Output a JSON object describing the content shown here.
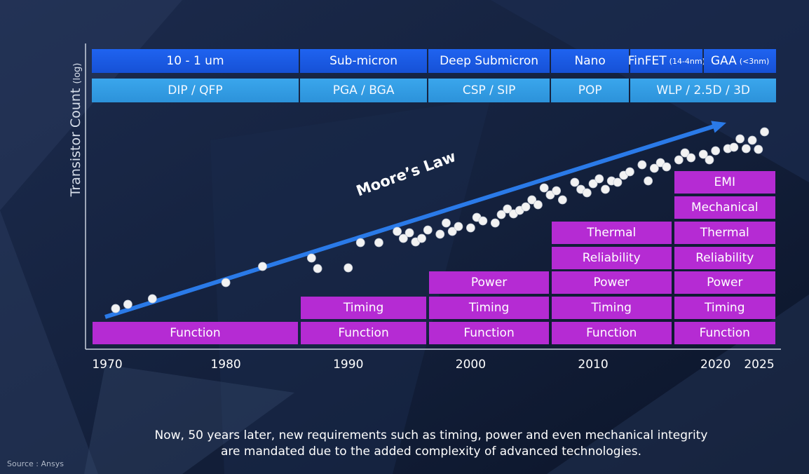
{
  "chart_data": {
    "type": "scatter",
    "ylabel": "Transistor Count",
    "ylabel_suffix": "(log)",
    "trend_label": "Moore’s Law",
    "x_ticks": [
      "1970",
      "1980",
      "1990",
      "2000",
      "2010",
      "2020",
      "2025"
    ],
    "xlim": [
      1969,
      2025
    ],
    "node_bands": [
      {
        "label": "10 - 1 um",
        "sub": "",
        "start": 1969,
        "end": 1986
      },
      {
        "label": "Sub-micron",
        "sub": "",
        "start": 1986,
        "end": 1996.5
      },
      {
        "label": "Deep Submicron",
        "sub": "",
        "start": 1996.5,
        "end": 2006.5
      },
      {
        "label": "Nano",
        "sub": "",
        "start": 2006.5,
        "end": 2013
      },
      {
        "label": "FinFET",
        "sub": "(14-4nm)",
        "start": 2013,
        "end": 2019
      },
      {
        "label": "GAA",
        "sub": "(<3nm)",
        "start": 2019,
        "end": 2025
      }
    ],
    "package_bands": [
      {
        "label": "DIP / QFP",
        "start": 1969,
        "end": 1986
      },
      {
        "label": "PGA / BGA",
        "start": 1986,
        "end": 1996.5
      },
      {
        "label": "CSP / SIP",
        "start": 1996.5,
        "end": 2006.5
      },
      {
        "label": "POP",
        "start": 2006.5,
        "end": 2013
      },
      {
        "label": "WLP / 2.5D / 3D",
        "start": 2013,
        "end": 2025
      }
    ],
    "requirement_columns": [
      {
        "start": 1969,
        "end": 1986,
        "items": [
          "Function"
        ]
      },
      {
        "start": 1986,
        "end": 1996.5,
        "items": [
          "Function",
          "Timing"
        ]
      },
      {
        "start": 1996.5,
        "end": 2006.5,
        "items": [
          "Function",
          "Timing",
          "Power"
        ]
      },
      {
        "start": 2006.5,
        "end": 2016.5,
        "items": [
          "Function",
          "Timing",
          "Power",
          "Reliability",
          "Thermal"
        ]
      },
      {
        "start": 2016.5,
        "end": 2026.5,
        "items": [
          "Function",
          "Timing",
          "Power",
          "Reliability",
          "Thermal",
          "Mechanical",
          "EMI"
        ]
      }
    ],
    "points": [
      [
        1971,
        440
      ],
      [
        1972,
        434
      ],
      [
        1974,
        426
      ],
      [
        1980,
        403
      ],
      [
        1983,
        380
      ],
      [
        1987,
        368
      ],
      [
        1987.5,
        383
      ],
      [
        1990,
        382
      ],
      [
        1991,
        346
      ],
      [
        1992.5,
        346
      ],
      [
        1994,
        330
      ],
      [
        1994.5,
        340
      ],
      [
        1995,
        332
      ],
      [
        1995.5,
        345
      ],
      [
        1996,
        340
      ],
      [
        1996.5,
        328
      ],
      [
        1997.5,
        334
      ],
      [
        1998,
        318
      ],
      [
        1998.5,
        330
      ],
      [
        1999,
        323
      ],
      [
        2000,
        325
      ],
      [
        2000.5,
        310
      ],
      [
        2001,
        315
      ],
      [
        2002,
        318
      ],
      [
        2002.5,
        306
      ],
      [
        2003,
        298
      ],
      [
        2003.5,
        305
      ],
      [
        2004,
        300
      ],
      [
        2004.5,
        295
      ],
      [
        2005,
        285
      ],
      [
        2005.5,
        292
      ],
      [
        2006,
        268
      ],
      [
        2006.5,
        278
      ],
      [
        2007,
        272
      ],
      [
        2007.5,
        285
      ],
      [
        2008.5,
        260
      ],
      [
        2009,
        270
      ],
      [
        2009.5,
        275
      ],
      [
        2010,
        262
      ],
      [
        2010.5,
        255
      ],
      [
        2011,
        270
      ],
      [
        2011.5,
        258
      ],
      [
        2012,
        260
      ],
      [
        2012.5,
        250
      ],
      [
        2013,
        245
      ],
      [
        2014,
        235
      ],
      [
        2014.5,
        258
      ],
      [
        2015,
        240
      ],
      [
        2015.5,
        232
      ],
      [
        2016,
        238
      ],
      [
        2017,
        228
      ],
      [
        2017.5,
        218
      ],
      [
        2018,
        225
      ],
      [
        2019,
        220
      ],
      [
        2019.5,
        228
      ],
      [
        2020,
        215
      ],
      [
        2021,
        212
      ],
      [
        2021.5,
        210
      ],
      [
        2022,
        198
      ],
      [
        2022.5,
        212
      ],
      [
        2023,
        200
      ],
      [
        2023.5,
        213
      ],
      [
        2024,
        188
      ]
    ],
    "trend_line": [
      [
        1970,
        452
      ],
      [
        2026,
        175
      ]
    ]
  },
  "caption": {
    "line1": "Now, 50 years later, new requirements such as timing, power and even mechanical integrity",
    "line2": "are mandated due to the added complexity of advanced technologies."
  },
  "source": "Source : Ansys",
  "colors": {
    "node_band": "#1f63f0",
    "package_band": "#3aa6ec",
    "requirement": "#b52bd3",
    "trend_arrow": "#2a7ae8",
    "point": "#f2f2f2"
  }
}
